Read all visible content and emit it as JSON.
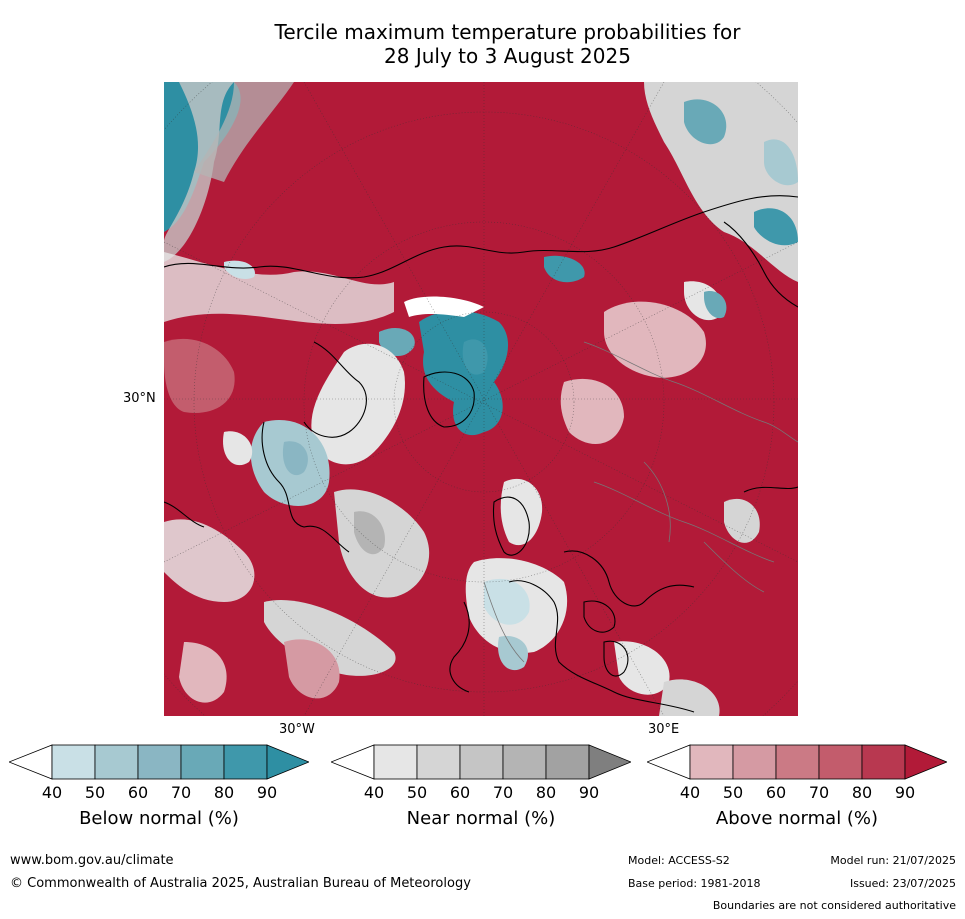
{
  "title_line1": "Tercile maximum temperature probabilities for",
  "title_line2": "28 July to 3 August 2025",
  "map": {
    "lat_label": "30°N",
    "lon_label_left": "30°W",
    "lon_label_right": "30°E",
    "colors": {
      "above_max": "#b21a38",
      "below_max": "#2e8fa3",
      "near": "#c8c8c8"
    }
  },
  "colorbars": {
    "below": {
      "label": "Below normal (%)",
      "ticks": [
        "40",
        "50",
        "60",
        "70",
        "80",
        "90"
      ],
      "colors": [
        "#ffffff",
        "#c9e0e6",
        "#a7c9d1",
        "#8ab6c3",
        "#69a9b7",
        "#3f98ab",
        "#2e8fa3"
      ]
    },
    "near": {
      "label": "Near normal (%)",
      "ticks": [
        "40",
        "50",
        "60",
        "70",
        "80",
        "90"
      ],
      "colors": [
        "#ffffff",
        "#e6e6e6",
        "#d5d5d5",
        "#c5c5c5",
        "#b4b4b4",
        "#a2a2a2",
        "#7f7f7f"
      ]
    },
    "above": {
      "label": "Above normal (%)",
      "ticks": [
        "40",
        "50",
        "60",
        "70",
        "80",
        "90"
      ],
      "colors": [
        "#ffffff",
        "#e1b7bd",
        "#d59aa3",
        "#cb7a85",
        "#c35c6c",
        "#b83850",
        "#b21a38"
      ]
    }
  },
  "footer": {
    "website": "www.bom.gov.au/climate",
    "copyright": "© Commonwealth of Australia 2025, Australian Bureau of Meteorology",
    "model": "Model: ACCESS-S2",
    "model_run": "Model run: 21/07/2025",
    "base_period": "Base period: 1981-2018",
    "issued": "Issued: 23/07/2025",
    "disclaimer": "Boundaries are not considered authoritative"
  }
}
